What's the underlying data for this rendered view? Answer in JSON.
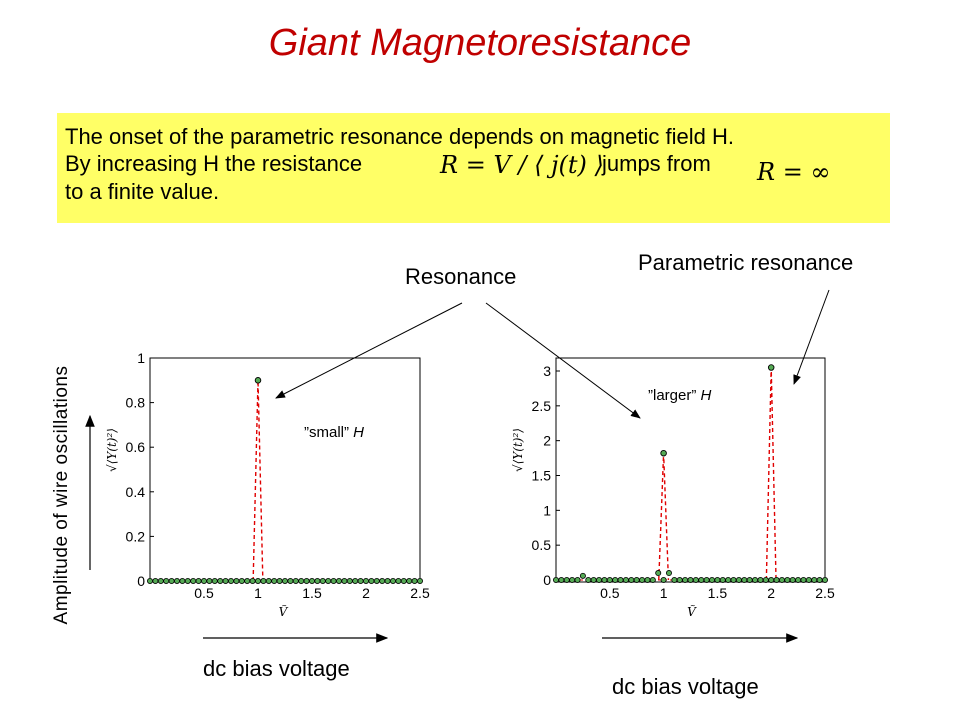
{
  "title": "Giant Magnetoresistance",
  "box": {
    "line1": "The onset of the parametric resonance depends on magnetic field H.",
    "line2": "By increasing H the resistance",
    "line2b": "jumps from",
    "line3": "to a finite value.",
    "formula1": "R = V / ⟨ j(t) ⟩",
    "formula2": "R = ∞"
  },
  "labels": {
    "resonance": "Resonance",
    "parametric": "Parametric resonance",
    "amplitude": "Amplitude of wire oscillations",
    "dc_left": "dc bias voltage",
    "dc_right": "dc bias voltage"
  },
  "notes": {
    "small_pre": "”small” ",
    "small_h": "H",
    "larger_pre": "”larger” ",
    "larger_h": "H"
  },
  "colors": {
    "title": "#c00000",
    "highlight": "#ffff66",
    "marker_fill": "#55aa55",
    "marker_edge": "#000000",
    "dash": "#e00000"
  },
  "chart_data": [
    {
      "type": "scatter",
      "title": "",
      "xlabel": "Ṽ",
      "ylabel": "√⟨Y(t)²⟩",
      "xlim": [
        0,
        2.5
      ],
      "ylim": [
        0,
        1
      ],
      "xticks": [
        "0.5",
        "1",
        "1.5",
        "2",
        "2.5"
      ],
      "yticks": [
        "0",
        "0.2",
        "0.4",
        "0.6",
        "0.8",
        "1"
      ],
      "peaks": [
        {
          "x": 1.0,
          "y": 0.9
        }
      ],
      "baseline": 0,
      "spacing": 0.05,
      "grid": false
    },
    {
      "type": "scatter",
      "title": "",
      "xlabel": "Ṽ",
      "ylabel": "√⟨Y(t)²⟩",
      "xlim": [
        0,
        2.5
      ],
      "ylim": [
        0,
        3.2
      ],
      "xticks": [
        "0.5",
        "1",
        "1.5",
        "2",
        "2.5"
      ],
      "yticks": [
        "0",
        "0.5",
        "1",
        "1.5",
        "2",
        "2.5",
        "3"
      ],
      "peaks": [
        {
          "x": 1.0,
          "y": 1.82
        },
        {
          "x": 2.0,
          "y": 3.05
        }
      ],
      "bumps": [
        {
          "x": 0.25,
          "y": 0.06
        },
        {
          "x": 0.95,
          "y": 0.1
        },
        {
          "x": 1.05,
          "y": 0.1
        }
      ],
      "baseline": 0,
      "spacing": 0.05,
      "grid": false
    }
  ]
}
